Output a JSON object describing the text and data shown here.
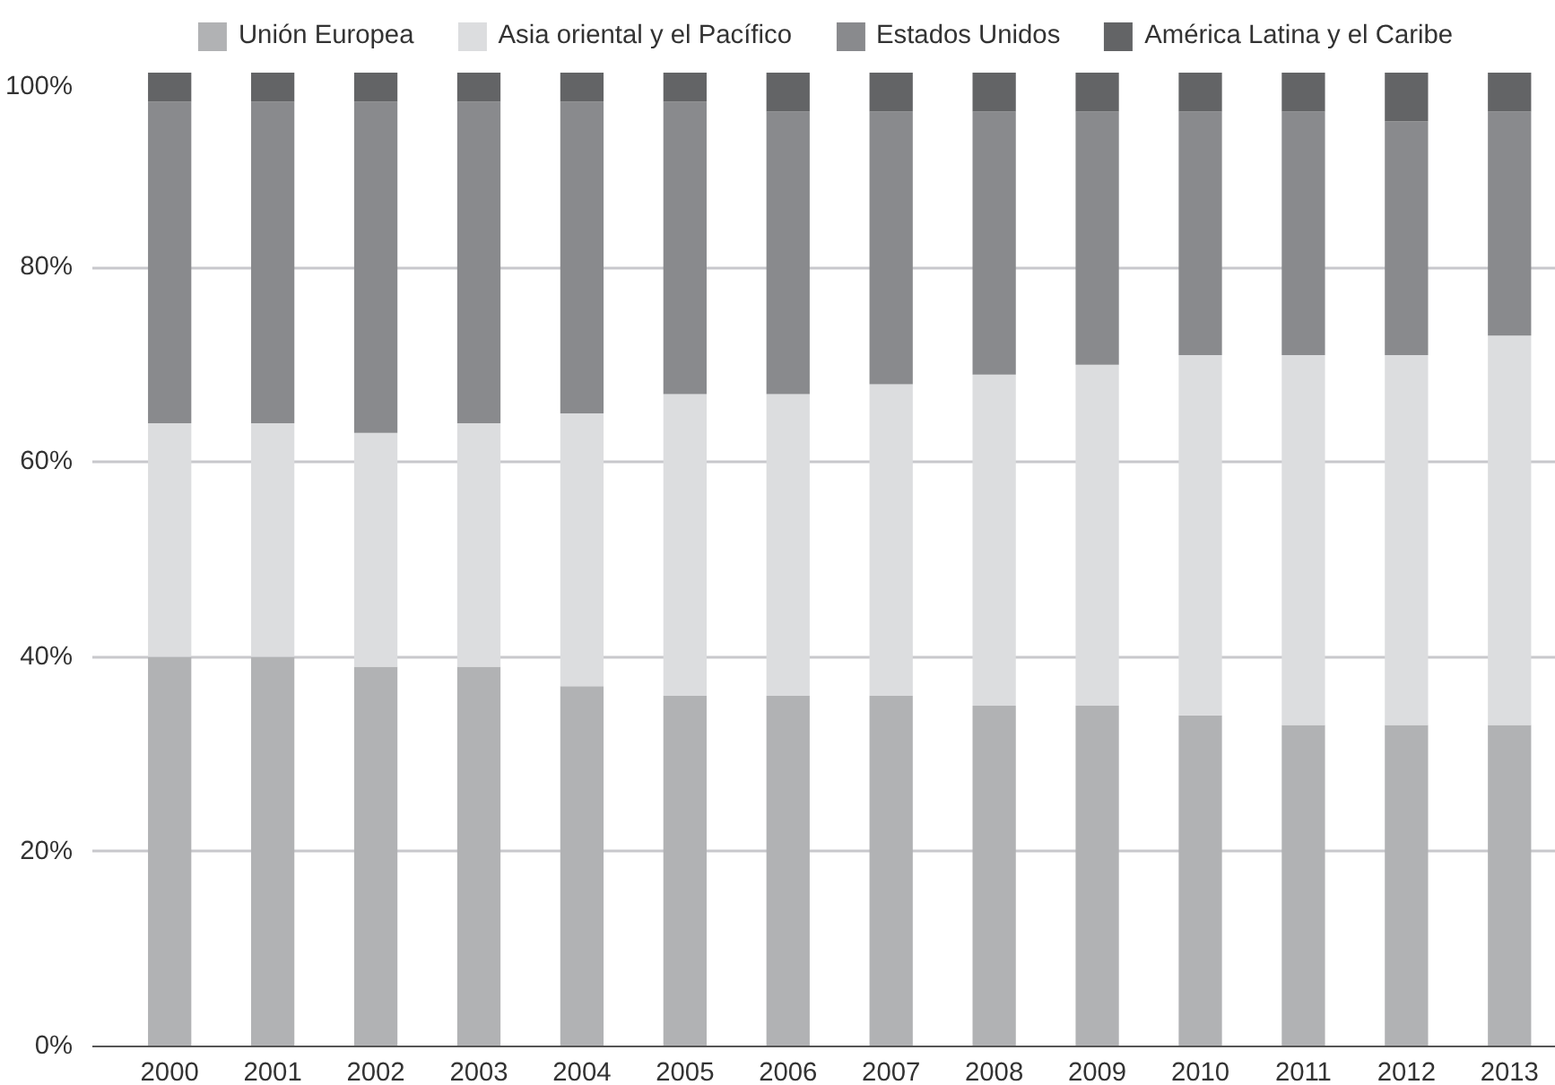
{
  "chart_data": {
    "type": "bar",
    "stacked": true,
    "categories": [
      "2000",
      "2001",
      "2002",
      "2003",
      "2004",
      "2005",
      "2006",
      "2007",
      "2008",
      "2009",
      "2010",
      "2011",
      "2012",
      "2013"
    ],
    "series": [
      {
        "name": "Unión Europea",
        "color": "#b1b2b4",
        "values": [
          40,
          40,
          39,
          39,
          37,
          36,
          36,
          36,
          35,
          35,
          34,
          33,
          33,
          33
        ]
      },
      {
        "name": "Asia oriental y el Pacífico",
        "color": "#dcdddf",
        "values": [
          24,
          24,
          24,
          25,
          28,
          31,
          31,
          32,
          34,
          35,
          37,
          38,
          38,
          40
        ]
      },
      {
        "name": "Estados Unidos",
        "color": "#898a8d",
        "values": [
          33,
          33,
          34,
          33,
          32,
          30,
          29,
          28,
          27,
          26,
          25,
          25,
          24,
          23
        ]
      },
      {
        "name": "América Latina y el Caribe",
        "color": "#636466",
        "values": [
          3,
          3,
          3,
          3,
          3,
          3,
          4,
          4,
          4,
          4,
          4,
          4,
          5,
          4
        ]
      }
    ],
    "ylim": [
      0,
      100
    ],
    "yticks": [
      {
        "value": 0,
        "label": "0%"
      },
      {
        "value": 20,
        "label": "20%"
      },
      {
        "value": 40,
        "label": "40%"
      },
      {
        "value": 60,
        "label": "60%"
      },
      {
        "value": 80,
        "label": "80%"
      },
      {
        "value": 100,
        "label": "100%"
      }
    ],
    "grid": "y",
    "legend": "top"
  }
}
